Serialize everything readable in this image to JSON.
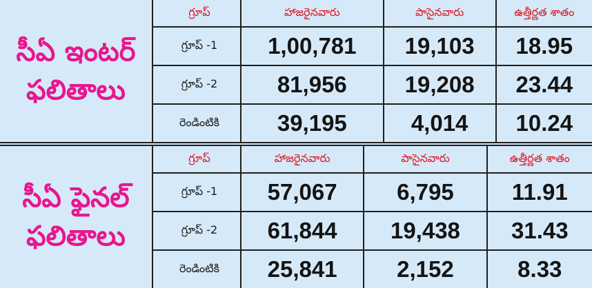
{
  "sections": [
    {
      "title_line1": "సీఏ ఇంటర్",
      "title_line2": "ఫలితాలు",
      "headers": [
        "గ్రూప్",
        "హాజరైనవారు",
        "పాసైనవారు",
        "ఉత్తీర్ణత శాతం"
      ],
      "rows": [
        {
          "label": "గ్రూప్ -1",
          "appeared": "1,00,781",
          "passed": "19,103",
          "pass_pct": "18.95"
        },
        {
          "label": "గ్రూప్ -2",
          "appeared": "81,956",
          "passed": "19,208",
          "pass_pct": "23.44"
        },
        {
          "label": "రెండింటికి",
          "appeared": "39,195",
          "passed": "4,014",
          "pass_pct": "10.24"
        }
      ]
    },
    {
      "title_line1": "సీఏ ఫైనల్",
      "title_line2": "ఫలితాలు",
      "headers": [
        "గ్రూప్",
        "హాజరైనవారు",
        "పాసైనవారు",
        "ఉత్తీర్ణత శాతం"
      ],
      "rows": [
        {
          "label": "గ్రూప్ -1",
          "appeared": "57,067",
          "passed": "6,795",
          "pass_pct": "11.91"
        },
        {
          "label": "గ్రూప్ -2",
          "appeared": "61,844",
          "passed": "19,438",
          "pass_pct": "31.43"
        },
        {
          "label": "రెండింటికి",
          "appeared": "25,841",
          "passed": "2,152",
          "pass_pct": "8.33"
        }
      ]
    }
  ],
  "colors": {
    "background": "#d6e9f8",
    "title": "#e8168e",
    "header": "#e0161e",
    "text": "#141414",
    "rule": "#1f1f1f"
  }
}
